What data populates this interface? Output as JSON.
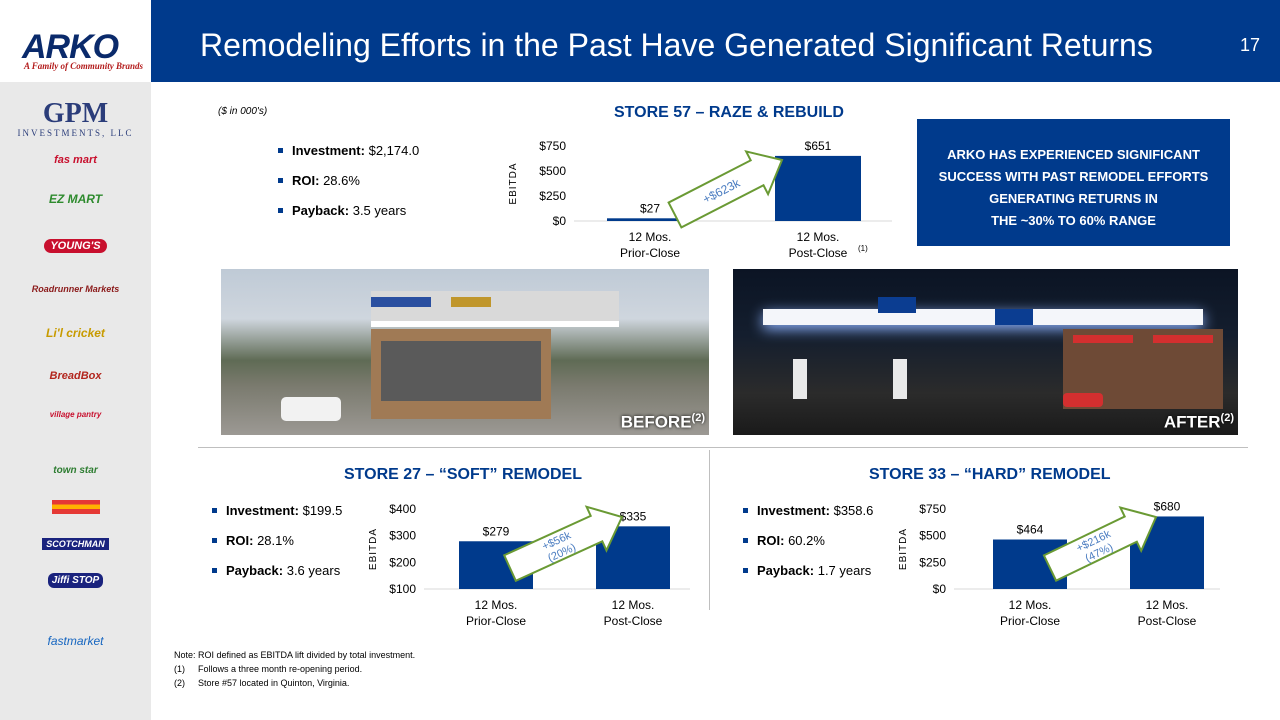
{
  "header": {
    "title": "Remodeling Efforts in the Past Have Generated Significant Returns",
    "page_number": "17"
  },
  "logo": {
    "name": "ARKO",
    "tagline": "A Family of Community Brands"
  },
  "sidebar": {
    "gpm_name": "GPM",
    "gpm_sub": "INVESTMENTS, LLC",
    "brands": [
      "fas mart",
      "EZ MART",
      "YOUNG'S",
      "Roadrunner Markets",
      "Li'l cricket",
      "BreadBox",
      "village pantry",
      "town star",
      "",
      "SCOTCHMAN",
      "Jiffi STOP",
      "fastmarket"
    ]
  },
  "units_note": "($ in 000's)",
  "store57": {
    "title": "STORE 57 – RAZE & REBUILD",
    "investment_label": "Investment:",
    "investment_value": "$2,174.0",
    "roi_label": "ROI:",
    "roi_value": "28.6%",
    "payback_label": "Payback:",
    "payback_value": "3.5 years"
  },
  "store27": {
    "title": "STORE 27 – “SOFT” REMODEL",
    "investment_label": "Investment:",
    "investment_value": "$199.5",
    "roi_label": "ROI:",
    "roi_value": "28.1%",
    "payback_label": "Payback:",
    "payback_value": "3.6 years"
  },
  "store33": {
    "title": "STORE 33 – “HARD” REMODEL",
    "investment_label": "Investment:",
    "investment_value": "$358.6",
    "roi_label": "ROI:",
    "roi_value": "60.2%",
    "payback_label": "Payback:",
    "payback_value": "1.7 years"
  },
  "callout": {
    "line1": "ARKO HAS EXPERIENCED SIGNIFICANT",
    "line2": "SUCCESS WITH PAST REMODEL EFFORTS",
    "line3": "GENERATING RETURNS IN",
    "line4": "THE ~30% TO 60% RANGE"
  },
  "photos": {
    "before_label": "BEFORE",
    "before_sup": "(2)",
    "after_label": "AFTER",
    "after_sup": "(2)"
  },
  "footnotes": {
    "note": "Note:  ROI defined as EBITDA lift divided by total investment.",
    "fn1_num": "(1)",
    "fn1": "Follows a three month re-opening period.",
    "fn2_num": "(2)",
    "fn2": "Store #57 located in Quinton, Virginia."
  },
  "colors": {
    "navy": "#003a8c",
    "bar": "#003a8c",
    "arrow_text": "#4a7cc0"
  },
  "chart_data": [
    {
      "type": "bar",
      "title": "STORE 57 – RAZE & REBUILD",
      "ylabel": "EBITDA",
      "categories": [
        [
          "12 Mos.",
          "Prior-Close"
        ],
        [
          "12 Mos.",
          "Post-Close"
        ]
      ],
      "category_sup": [
        "",
        "(1)"
      ],
      "values": [
        27,
        651
      ],
      "value_labels": [
        "$27",
        "$651"
      ],
      "yticks": [
        0,
        250,
        500,
        750
      ],
      "ytick_labels": [
        "$0",
        "$250",
        "$500",
        "$750"
      ],
      "ylim": [
        0,
        750
      ],
      "annotation": [
        "+$623k"
      ]
    },
    {
      "type": "bar",
      "title": "STORE 27 – “SOFT” REMODEL",
      "ylabel": "EBITDA",
      "categories": [
        [
          "12 Mos.",
          "Prior-Close"
        ],
        [
          "12 Mos.",
          "Post-Close"
        ]
      ],
      "category_sup": [
        "",
        ""
      ],
      "values": [
        279,
        335
      ],
      "value_labels": [
        "$279",
        "$335"
      ],
      "yticks": [
        100,
        200,
        300,
        400
      ],
      "ytick_labels": [
        "$100",
        "$200",
        "$300",
        "$400"
      ],
      "ylim": [
        100,
        400
      ],
      "annotation": [
        "+$56k",
        "(20%)"
      ]
    },
    {
      "type": "bar",
      "title": "STORE 33 – “HARD” REMODEL",
      "ylabel": "EBITDA",
      "categories": [
        [
          "12 Mos.",
          "Prior-Close"
        ],
        [
          "12 Mos.",
          "Post-Close"
        ]
      ],
      "category_sup": [
        "",
        ""
      ],
      "values": [
        464,
        680
      ],
      "value_labels": [
        "$464",
        "$680"
      ],
      "yticks": [
        0,
        250,
        500,
        750
      ],
      "ytick_labels": [
        "$0",
        "$250",
        "$500",
        "$750"
      ],
      "ylim": [
        0,
        750
      ],
      "annotation": [
        "+$216k",
        "(47%)"
      ]
    }
  ]
}
